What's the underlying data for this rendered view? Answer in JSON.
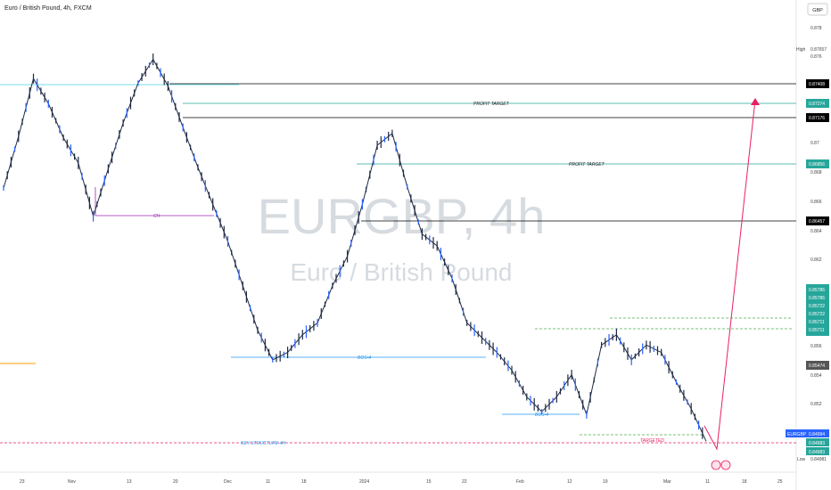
{
  "header": {
    "title": "Euro / British Pound, 4h, FXCM",
    "currency_button": "GBP"
  },
  "watermark": {
    "symbol": "EURGBP, 4h",
    "name": "Euro / British Pound"
  },
  "colors": {
    "candle": "#1f2a44",
    "candle_accent": "#2962ff",
    "black_level": "#000000",
    "green_level": "#26a69a",
    "cyan_level": "#4dd0e1",
    "blue_annotation": "#2196f3",
    "purple_choch": "#9c27b0",
    "red_target": "#e91e63",
    "orange_line": "#ff9800",
    "dashed_green": "#4caf50"
  },
  "chart_data": {
    "type": "line",
    "title": "Euro / British Pound, 4h, FXCM",
    "symbol": "EURGBP",
    "ylim": [
      0.8482,
      0.879
    ],
    "y_ticks": [
      0.878,
      0.876,
      0.87,
      0.868,
      0.866,
      0.864,
      0.862,
      0.856,
      0.854,
      0.852
    ],
    "x_tick_labels": [
      "23",
      "Nov",
      "13",
      "20",
      "Dec",
      "11",
      "18",
      "2024",
      "15",
      "22",
      "Feb",
      "12",
      "19",
      "Mar",
      "11",
      "18",
      "25"
    ],
    "series": [
      {
        "values": [
          0.8671,
          0.8706,
          0.8745,
          0.8728,
          0.8705,
          0.8688,
          0.8652,
          0.8684,
          0.8715,
          0.8742,
          0.8758,
          0.874,
          0.8712,
          0.8685,
          0.866,
          0.8635,
          0.8605,
          0.8575,
          0.8555,
          0.856,
          0.8572,
          0.858,
          0.8605,
          0.8625,
          0.866,
          0.87,
          0.8708,
          0.8672,
          0.864,
          0.8632,
          0.861,
          0.858,
          0.857,
          0.856,
          0.8548,
          0.853,
          0.852,
          0.853,
          0.8545,
          0.8518,
          0.8565,
          0.8572,
          0.8555,
          0.8565,
          0.856,
          0.854,
          0.8522,
          0.85
        ]
      }
    ],
    "levels": [
      {
        "label": "0.87408",
        "value": 0.87408,
        "color": "black"
      },
      {
        "label": "0.87274",
        "value": 0.87274,
        "color": "green",
        "annotation": "PROFIT TARGET"
      },
      {
        "label": "0.87176",
        "value": 0.87176,
        "color": "black"
      },
      {
        "label": "0.86856",
        "value": 0.86856,
        "color": "green",
        "annotation": "PROFIT TARGET"
      },
      {
        "label": "0.86457",
        "value": 0.86457,
        "color": "black"
      },
      {
        "label": "0.85474",
        "value": 0.85474,
        "color": "gray"
      },
      {
        "label": "EURGBP",
        "value": 0.84994,
        "color": "blue"
      },
      {
        "label": "0.84994",
        "value": 0.84994,
        "color": "blue"
      },
      {
        "label": "0.84983",
        "value": 0.84983,
        "color": "green"
      },
      {
        "label": "0.84983",
        "value": 0.84983,
        "color": "green"
      }
    ],
    "green_stack": [
      "0.85786",
      "0.85786",
      "0.85722",
      "0.85722",
      "0.85711",
      "0.85711"
    ],
    "high_label": "High",
    "high_value": "0.87657",
    "low_label": "Low",
    "low_value": "0.84981",
    "annotations": [
      "PROFIT TARGET",
      "PROFIT TARGET",
      "CH",
      "BOS-4",
      "BOS-4",
      "KEY STRUCTURE-4H",
      "TARGETED"
    ]
  }
}
